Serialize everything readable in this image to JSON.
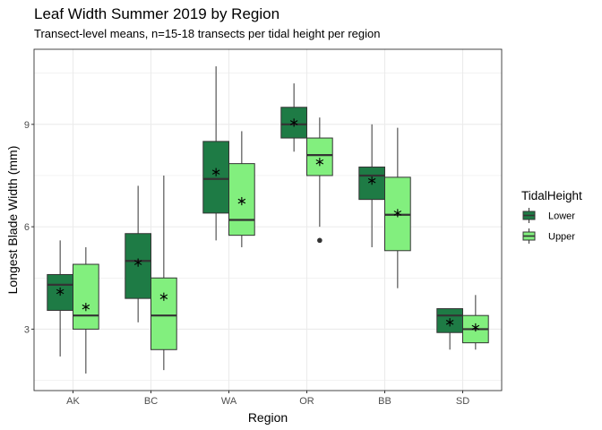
{
  "chart_data": {
    "type": "boxplot",
    "title": "Leaf Width Summer 2019 by Region",
    "subtitle": "Transect-level means, n=15-18 transects per tidal height per region",
    "xlabel": "Region",
    "ylabel": "Longest Blade Width (mm)",
    "ylim": [
      1.2,
      11.2
    ],
    "yticks": [
      3,
      6,
      9
    ],
    "categories": [
      "AK",
      "BC",
      "WA",
      "OR",
      "BB",
      "SD"
    ],
    "legend": {
      "title": "TidalHeight",
      "position": "right"
    },
    "grid": true,
    "series": [
      {
        "name": "Lower",
        "color": "#1e7b45",
        "boxes": [
          {
            "min": 2.2,
            "q1": 3.55,
            "median": 4.3,
            "q3": 4.6,
            "max": 5.6,
            "mean": 4.1,
            "outliers": []
          },
          {
            "min": 3.2,
            "q1": 3.9,
            "median": 5.0,
            "q3": 5.8,
            "max": 7.2,
            "mean": 4.95,
            "outliers": []
          },
          {
            "min": 5.6,
            "q1": 6.4,
            "median": 7.4,
            "q3": 8.5,
            "max": 10.7,
            "mean": 7.6,
            "outliers": []
          },
          {
            "min": 8.2,
            "q1": 8.6,
            "median": 9.0,
            "q3": 9.5,
            "max": 10.2,
            "mean": 9.05,
            "outliers": []
          },
          {
            "min": 5.4,
            "q1": 6.8,
            "median": 7.5,
            "q3": 7.75,
            "max": 9.0,
            "mean": 7.35,
            "outliers": []
          },
          {
            "min": 2.4,
            "q1": 2.9,
            "median": 3.4,
            "q3": 3.6,
            "max": 3.6,
            "mean": 3.2,
            "outliers": []
          }
        ]
      },
      {
        "name": "Upper",
        "color": "#82ef7e",
        "boxes": [
          {
            "min": 1.7,
            "q1": 3.0,
            "median": 3.4,
            "q3": 4.9,
            "max": 5.4,
            "mean": 3.65,
            "outliers": []
          },
          {
            "min": 1.8,
            "q1": 2.4,
            "median": 3.4,
            "q3": 4.5,
            "max": 7.5,
            "mean": 3.95,
            "outliers": []
          },
          {
            "min": 5.4,
            "q1": 5.75,
            "median": 6.2,
            "q3": 7.85,
            "max": 8.8,
            "mean": 6.75,
            "outliers": []
          },
          {
            "min": 6.0,
            "q1": 7.5,
            "median": 8.1,
            "q3": 8.6,
            "max": 9.2,
            "mean": 7.9,
            "outliers": [
              5.6
            ]
          },
          {
            "min": 4.2,
            "q1": 5.3,
            "median": 6.35,
            "q3": 7.45,
            "max": 8.9,
            "mean": 6.4,
            "outliers": []
          },
          {
            "min": 2.4,
            "q1": 2.6,
            "median": 3.0,
            "q3": 3.4,
            "max": 4.0,
            "mean": 3.05,
            "outliers": []
          }
        ]
      }
    ]
  }
}
